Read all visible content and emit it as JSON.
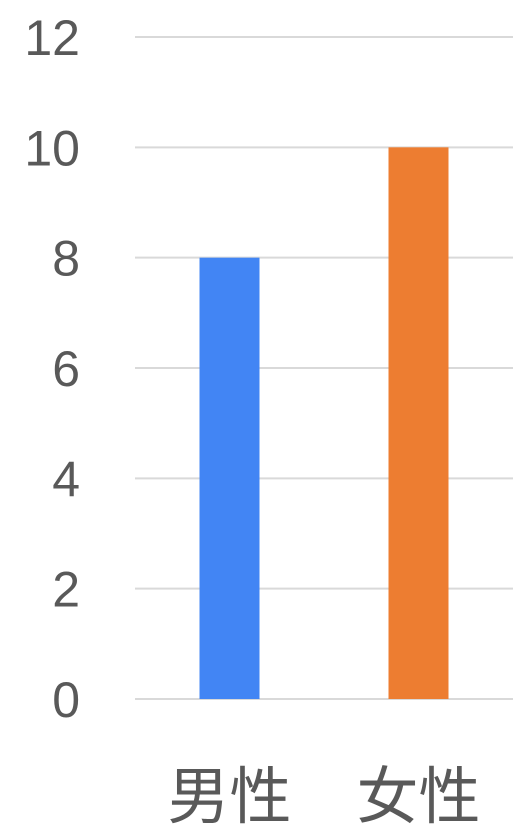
{
  "chart_data": {
    "type": "bar",
    "categories": [
      "男性",
      "女性"
    ],
    "values": [
      8,
      10
    ],
    "colors": [
      "#4285f4",
      "#ed7d31"
    ],
    "ylim": [
      0,
      12
    ],
    "yticks": [
      "0",
      "2",
      "4",
      "6",
      "8",
      "10",
      "12"
    ],
    "grid": true,
    "legend": "none"
  }
}
